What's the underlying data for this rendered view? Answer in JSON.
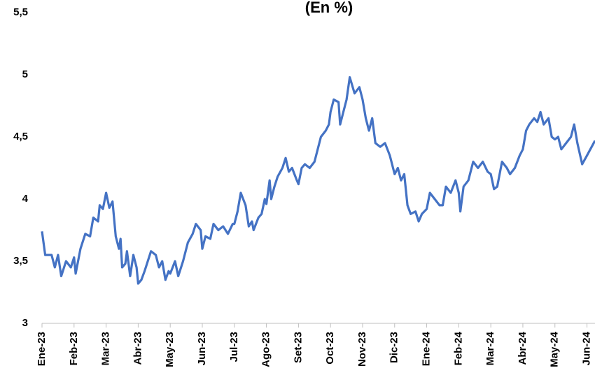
{
  "chart_data": {
    "type": "line",
    "title": "(En %)",
    "x": [
      0,
      0.1,
      0.3,
      0.4,
      0.5,
      0.6,
      0.75,
      0.9,
      1.0,
      1.05,
      1.2,
      1.35,
      1.5,
      1.6,
      1.75,
      1.8,
      1.9,
      2.0,
      2.1,
      2.2,
      2.3,
      2.4,
      2.45,
      2.5,
      2.6,
      2.65,
      2.75,
      2.85,
      2.95,
      3.0,
      3.1,
      3.2,
      3.3,
      3.4,
      3.55,
      3.65,
      3.75,
      3.85,
      3.95,
      4.0,
      4.15,
      4.25,
      4.4,
      4.55,
      4.7,
      4.8,
      4.95,
      5.0,
      5.1,
      5.25,
      5.35,
      5.5,
      5.65,
      5.8,
      5.95,
      6.0,
      6.1,
      6.2,
      6.35,
      6.45,
      6.55,
      6.6,
      6.75,
      6.85,
      6.95,
      7.0,
      7.1,
      7.15,
      7.25,
      7.35,
      7.5,
      7.6,
      7.7,
      7.8,
      7.95,
      8.0,
      8.1,
      8.2,
      8.35,
      8.5,
      8.6,
      8.7,
      8.85,
      8.95,
      9.0,
      9.1,
      9.25,
      9.3,
      9.4,
      9.5,
      9.6,
      9.75,
      9.9,
      10.0,
      10.1,
      10.2,
      10.3,
      10.4,
      10.55,
      10.7,
      10.85,
      11.0,
      11.1,
      11.2,
      11.3,
      11.4,
      11.5,
      11.65,
      11.75,
      11.85,
      12.0,
      12.1,
      12.25,
      12.4,
      12.5,
      12.6,
      12.75,
      12.9,
      13.0,
      13.05,
      13.15,
      13.3,
      13.45,
      13.6,
      13.75,
      13.9,
      14.0,
      14.1,
      14.2,
      14.35,
      14.5,
      14.6,
      14.75,
      14.9,
      15.0,
      15.1,
      15.2,
      15.35,
      15.45,
      15.55,
      15.65,
      15.8,
      15.9,
      16.0,
      16.1,
      16.2,
      16.35,
      16.5,
      16.6,
      16.7,
      16.85,
      17.0,
      17.25
    ],
    "series": [
      {
        "color": "#4472c4",
        "values": [
          3.74,
          3.55,
          3.55,
          3.45,
          3.55,
          3.38,
          3.5,
          3.45,
          3.53,
          3.4,
          3.6,
          3.72,
          3.7,
          3.85,
          3.82,
          3.95,
          3.92,
          4.05,
          3.93,
          3.98,
          3.7,
          3.6,
          3.68,
          3.45,
          3.48,
          3.58,
          3.38,
          3.55,
          3.45,
          3.32,
          3.35,
          3.42,
          3.5,
          3.58,
          3.55,
          3.45,
          3.5,
          3.35,
          3.42,
          3.4,
          3.5,
          3.38,
          3.5,
          3.65,
          3.72,
          3.8,
          3.75,
          3.6,
          3.7,
          3.68,
          3.8,
          3.75,
          3.78,
          3.72,
          3.8,
          3.8,
          3.9,
          4.05,
          3.95,
          3.78,
          3.82,
          3.75,
          3.85,
          3.88,
          4.0,
          3.96,
          4.15,
          4.0,
          4.1,
          4.18,
          4.25,
          4.33,
          4.22,
          4.25,
          4.15,
          4.12,
          4.25,
          4.28,
          4.25,
          4.3,
          4.4,
          4.5,
          4.55,
          4.6,
          4.7,
          4.8,
          4.78,
          4.6,
          4.7,
          4.8,
          4.98,
          4.85,
          4.9,
          4.8,
          4.65,
          4.55,
          4.65,
          4.45,
          4.42,
          4.45,
          4.35,
          4.2,
          4.25,
          4.15,
          4.2,
          3.95,
          3.88,
          3.9,
          3.82,
          3.88,
          3.92,
          4.05,
          4.0,
          3.95,
          3.95,
          4.1,
          4.05,
          4.15,
          4.05,
          3.9,
          4.1,
          4.15,
          4.3,
          4.25,
          4.3,
          4.22,
          4.2,
          4.08,
          4.1,
          4.3,
          4.25,
          4.2,
          4.25,
          4.35,
          4.4,
          4.55,
          4.6,
          4.65,
          4.62,
          4.7,
          4.6,
          4.65,
          4.5,
          4.48,
          4.5,
          4.4,
          4.45,
          4.5,
          4.6,
          4.45,
          4.28,
          4.35,
          4.47
        ]
      }
    ],
    "xlim": [
      0,
      17.25
    ],
    "xticks": [
      {
        "value": 0,
        "label": "Ene-23"
      },
      {
        "value": 1,
        "label": "Feb-23"
      },
      {
        "value": 2,
        "label": "Mar-23"
      },
      {
        "value": 3,
        "label": "Abr-23"
      },
      {
        "value": 4,
        "label": "May-23"
      },
      {
        "value": 5,
        "label": "Jun-23"
      },
      {
        "value": 6,
        "label": "Jul-23"
      },
      {
        "value": 7,
        "label": "Ago-23"
      },
      {
        "value": 8,
        "label": "Set-23"
      },
      {
        "value": 9,
        "label": "Oct-23"
      },
      {
        "value": 10,
        "label": "Nov-23"
      },
      {
        "value": 11,
        "label": "Dic-23"
      },
      {
        "value": 12,
        "label": "Ene-24"
      },
      {
        "value": 13,
        "label": "Feb-24"
      },
      {
        "value": 14,
        "label": "Mar-24"
      },
      {
        "value": 15,
        "label": "Abr-24"
      },
      {
        "value": 16,
        "label": "May-24"
      },
      {
        "value": 17,
        "label": "Jun-24"
      }
    ],
    "ylim": [
      3,
      5.5
    ],
    "yticks": [
      3,
      {
        "value": 3.5,
        "label": "3,5"
      },
      4,
      {
        "value": 4.5,
        "label": "4,5"
      },
      5,
      {
        "value": 5.5,
        "label": "5,5"
      }
    ],
    "grid": false
  }
}
